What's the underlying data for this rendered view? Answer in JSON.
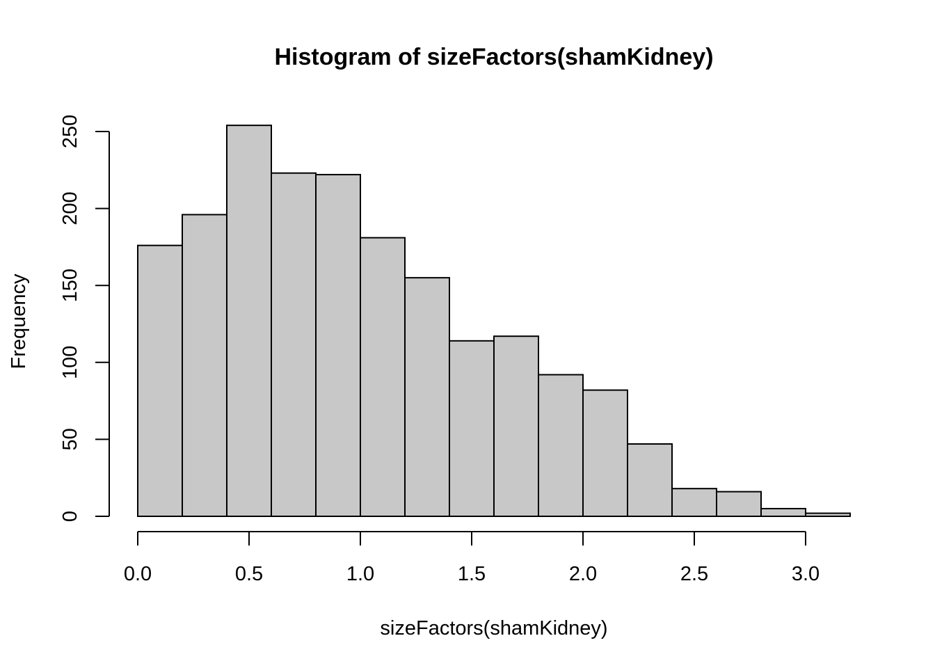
{
  "chart_data": {
    "type": "bar",
    "title": "Histogram of sizeFactors(shamKidney)",
    "xlabel": "sizeFactors(shamKidney)",
    "ylabel": "Frequency",
    "bin_edges": [
      0.0,
      0.2,
      0.4,
      0.6,
      0.8,
      1.0,
      1.2,
      1.4,
      1.6,
      1.8,
      2.0,
      2.2,
      2.4,
      2.6,
      2.8,
      3.0,
      3.2
    ],
    "values": [
      176,
      196,
      254,
      223,
      222,
      181,
      155,
      114,
      117,
      92,
      82,
      47,
      18,
      16,
      5,
      2
    ],
    "xlim": [
      0.0,
      3.2
    ],
    "ylim": [
      0,
      254
    ],
    "x_ticks": [
      0.0,
      0.5,
      1.0,
      1.5,
      2.0,
      2.5,
      3.0
    ],
    "x_tick_labels": [
      "0.0",
      "0.5",
      "1.0",
      "1.5",
      "2.0",
      "2.5",
      "3.0"
    ],
    "y_ticks": [
      0,
      50,
      100,
      150,
      200,
      250
    ],
    "y_tick_labels": [
      "0",
      "50",
      "100",
      "150",
      "200",
      "250"
    ],
    "grid": false,
    "bar_fill": "#c8c8c8",
    "bar_stroke": "#000000"
  }
}
